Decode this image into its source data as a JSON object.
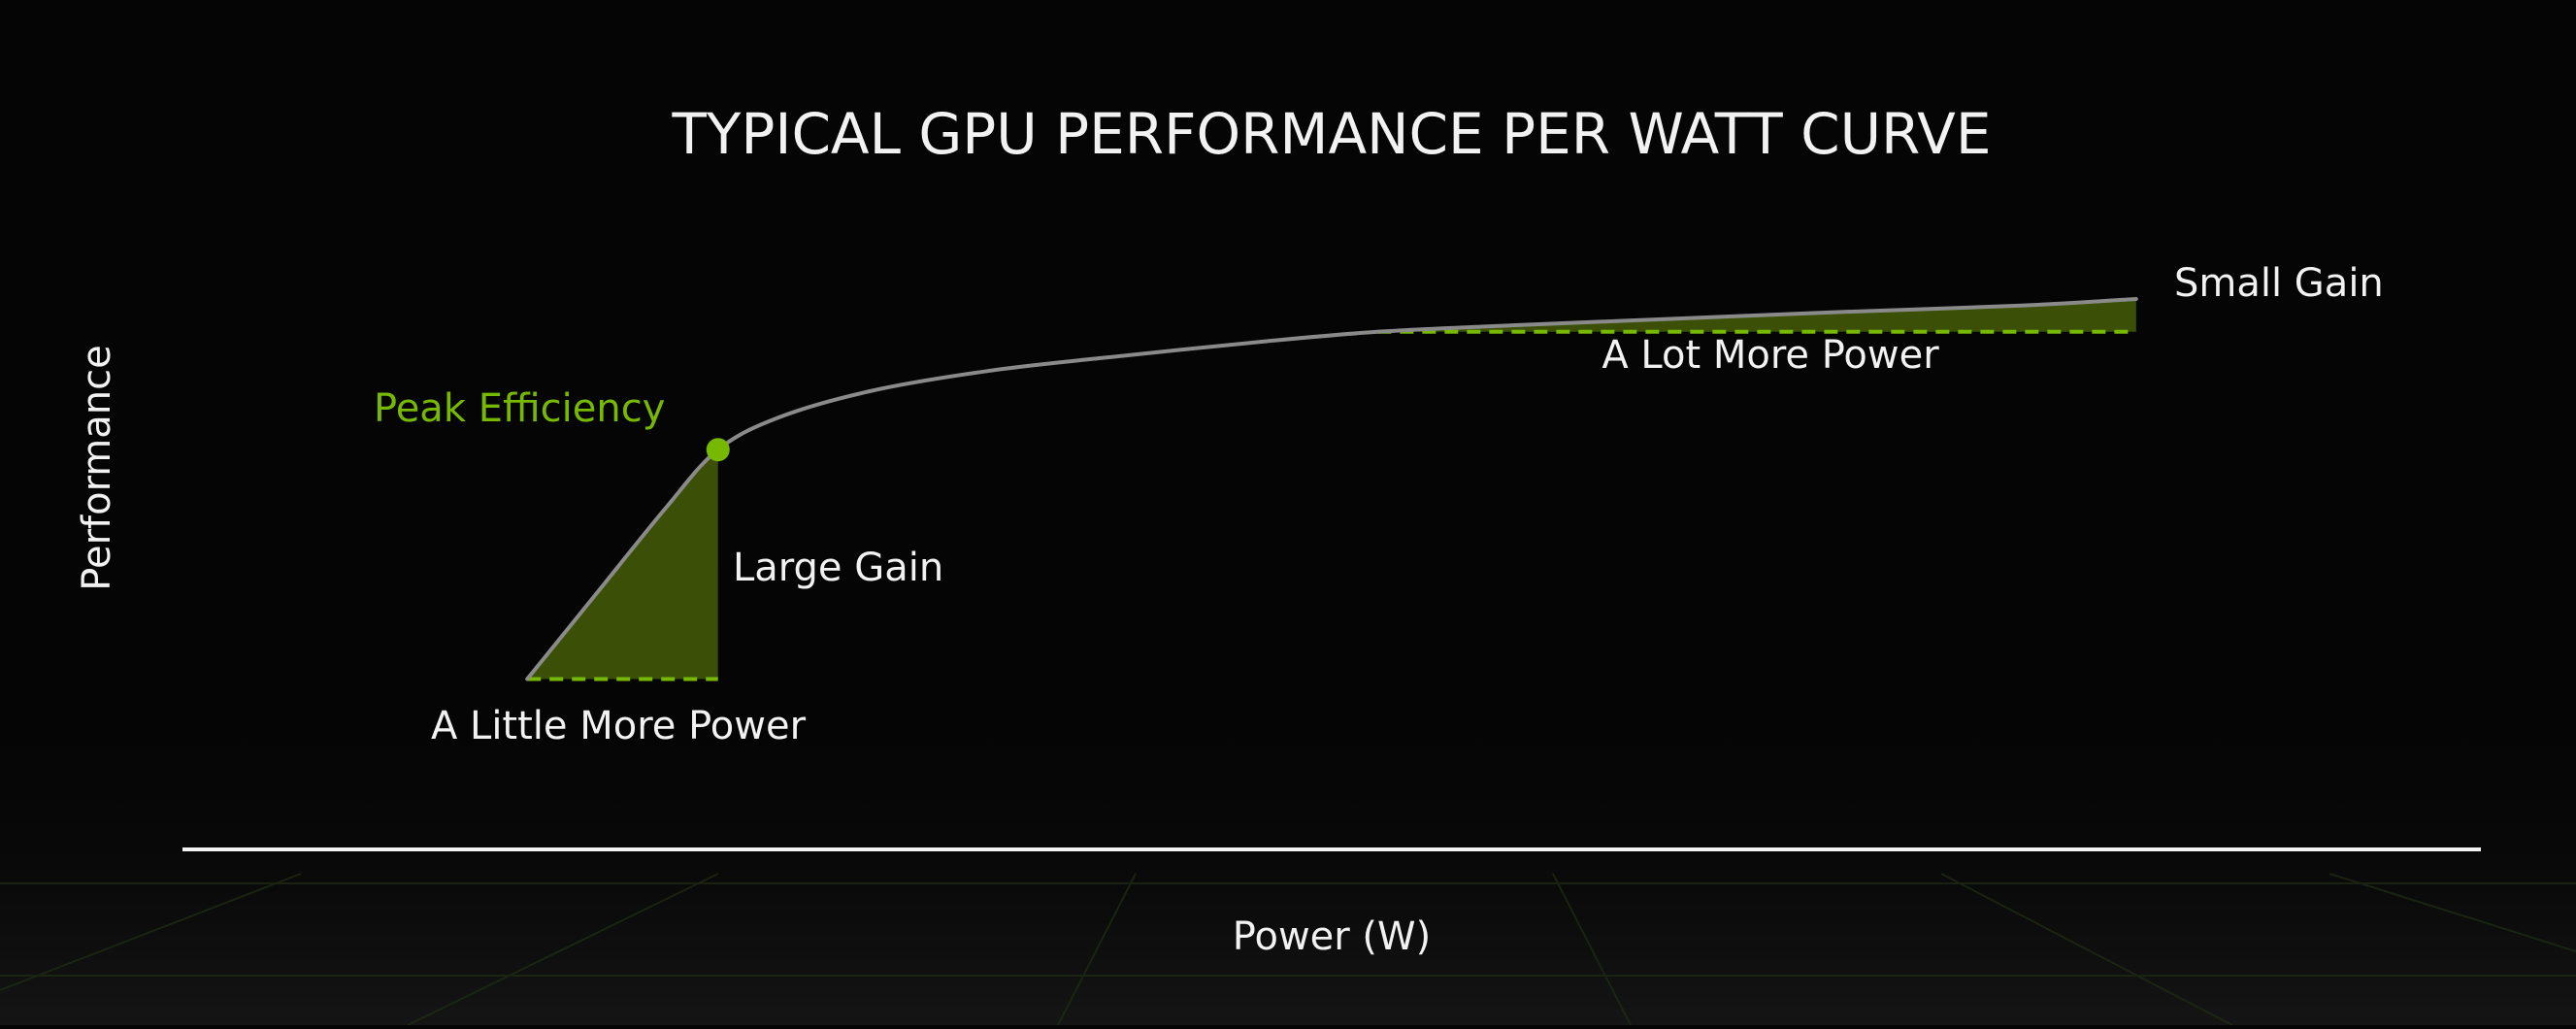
{
  "chart_data": {
    "type": "line",
    "title": "TYPICAL GPU PERFORMANCE PER WATT CURVE",
    "xlabel": "Power (W)",
    "ylabel": "Performance",
    "xlim": [
      0,
      100
    ],
    "ylim": [
      0,
      100
    ],
    "grid": false,
    "series": [
      {
        "x": [
          15,
          18,
          21,
          23.3,
          26,
          30,
          35,
          40,
          47,
          52,
          58,
          65,
          72,
          80,
          85
        ],
        "y": [
          26,
          39,
          52,
          61,
          66,
          70,
          73,
          75,
          77.5,
          79,
          80,
          81,
          82,
          83,
          84
        ]
      }
    ],
    "markers": [
      {
        "label": "Peak Efficiency",
        "x": 23.3,
        "y": 61
      }
    ],
    "annotations": {
      "large_gain": "Large Gain",
      "little_more_power": "A Little More Power",
      "small_gain": "Small Gain",
      "lot_more_power": "A Lot More Power"
    },
    "shaded_regions": [
      {
        "name": "low-power gain",
        "x_from": 15,
        "x_to": 23.3,
        "base_y": 26,
        "gain_label": "Large Gain",
        "power_label": "A Little More Power"
      },
      {
        "name": "high-power gain",
        "x_from": 52,
        "x_to": 85,
        "base_y": 79,
        "gain_label": "Small Gain",
        "power_label": "A Lot More Power"
      }
    ],
    "colors": {
      "background": "#050505",
      "curve": "#8a8a8a",
      "fill": "#3b5006",
      "accent": "#76b900",
      "text": "#f2f2f2"
    }
  }
}
